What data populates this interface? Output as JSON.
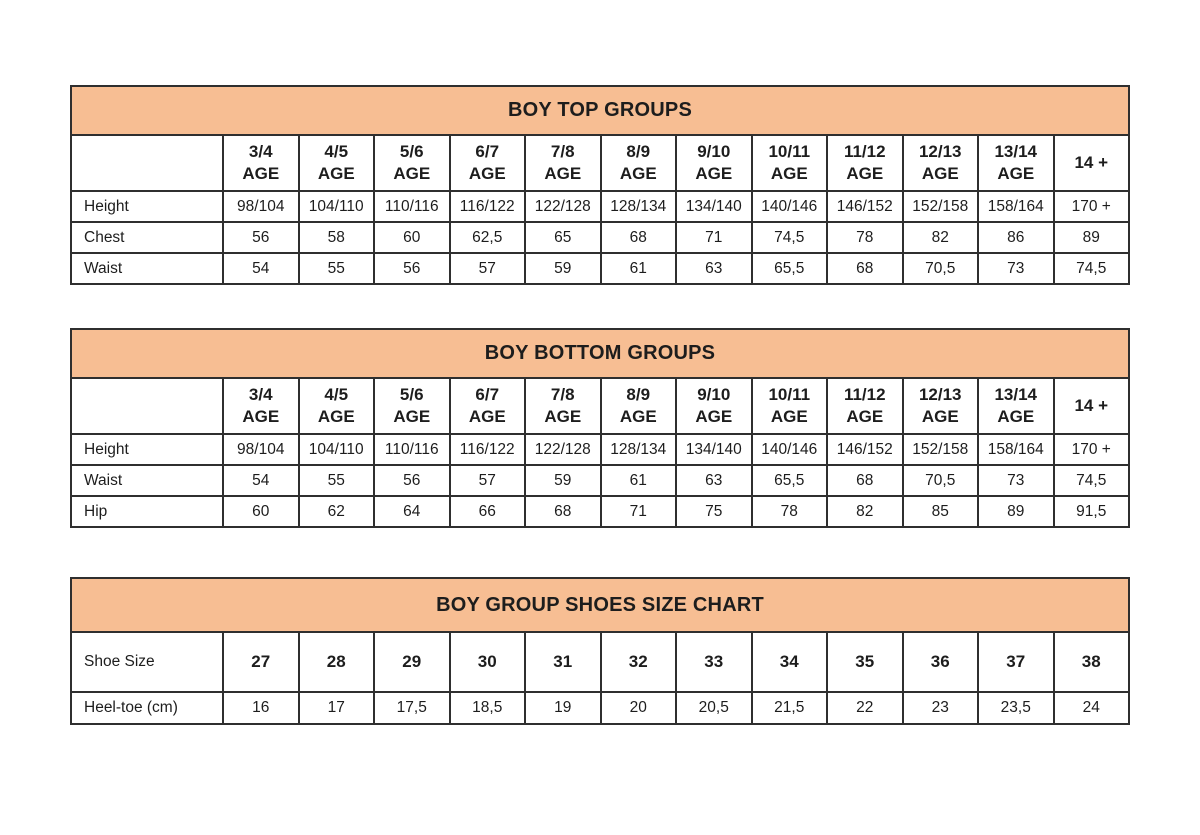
{
  "page": {
    "background": "#ffffff"
  },
  "theme": {
    "title_bg": "#F7BE93",
    "border_color": "#2f2f2f",
    "text_color": "#1d1d1d"
  },
  "tables": [
    {
      "id": "boy-top-groups",
      "title": "BOY TOP GROUPS",
      "header": [
        "",
        "3/4\nAGE",
        "4/5\nAGE",
        "5/6\nAGE",
        "6/7\nAGE",
        "7/8\nAGE",
        "8/9\nAGE",
        "9/10\nAGE",
        "10/11\nAGE",
        "11/12\nAGE",
        "12/13\nAGE",
        "13/14\nAGE",
        "14 +"
      ],
      "rows": [
        {
          "label": "Height",
          "values": [
            "98/104",
            "104/110",
            "110/116",
            "116/122",
            "122/128",
            "128/134",
            "134/140",
            "140/146",
            "146/152",
            "152/158",
            "158/164",
            "170 +"
          ]
        },
        {
          "label": "Chest",
          "values": [
            "56",
            "58",
            "60",
            "62,5",
            "65",
            "68",
            "71",
            "74,5",
            "78",
            "82",
            "86",
            "89"
          ]
        },
        {
          "label": "Waist",
          "values": [
            "54",
            "55",
            "56",
            "57",
            "59",
            "61",
            "63",
            "65,5",
            "68",
            "70,5",
            "73",
            "74,5"
          ]
        }
      ]
    },
    {
      "id": "boy-bottom-groups",
      "title": "BOY BOTTOM GROUPS",
      "header": [
        "",
        "3/4\nAGE",
        "4/5\nAGE",
        "5/6\nAGE",
        "6/7\nAGE",
        "7/8\nAGE",
        "8/9\nAGE",
        "9/10\nAGE",
        "10/11\nAGE",
        "11/12\nAGE",
        "12/13\nAGE",
        "13/14\nAGE",
        "14 +"
      ],
      "rows": [
        {
          "label": "Height",
          "values": [
            "98/104",
            "104/110",
            "110/116",
            "116/122",
            "122/128",
            "128/134",
            "134/140",
            "140/146",
            "146/152",
            "152/158",
            "158/164",
            "170 +"
          ]
        },
        {
          "label": "Waist",
          "values": [
            "54",
            "55",
            "56",
            "57",
            "59",
            "61",
            "63",
            "65,5",
            "68",
            "70,5",
            "73",
            "74,5"
          ]
        },
        {
          "label": "Hip",
          "values": [
            "60",
            "62",
            "64",
            "66",
            "68",
            "71",
            "75",
            "78",
            "82",
            "85",
            "89",
            "91,5"
          ]
        }
      ]
    },
    {
      "id": "boy-group-shoes-size-chart",
      "title": "BOY GROUP SHOES SIZE CHART",
      "header": null,
      "rows": [
        {
          "label": "Shoe Size",
          "emphasis": true,
          "values": [
            "27",
            "28",
            "29",
            "30",
            "31",
            "32",
            "33",
            "34",
            "35",
            "36",
            "37",
            "38"
          ]
        },
        {
          "label": "Heel-toe (cm)",
          "values": [
            "16",
            "17",
            "17,5",
            "18,5",
            "19",
            "20",
            "20,5",
            "21,5",
            "22",
            "23",
            "23,5",
            "24"
          ]
        }
      ]
    }
  ]
}
